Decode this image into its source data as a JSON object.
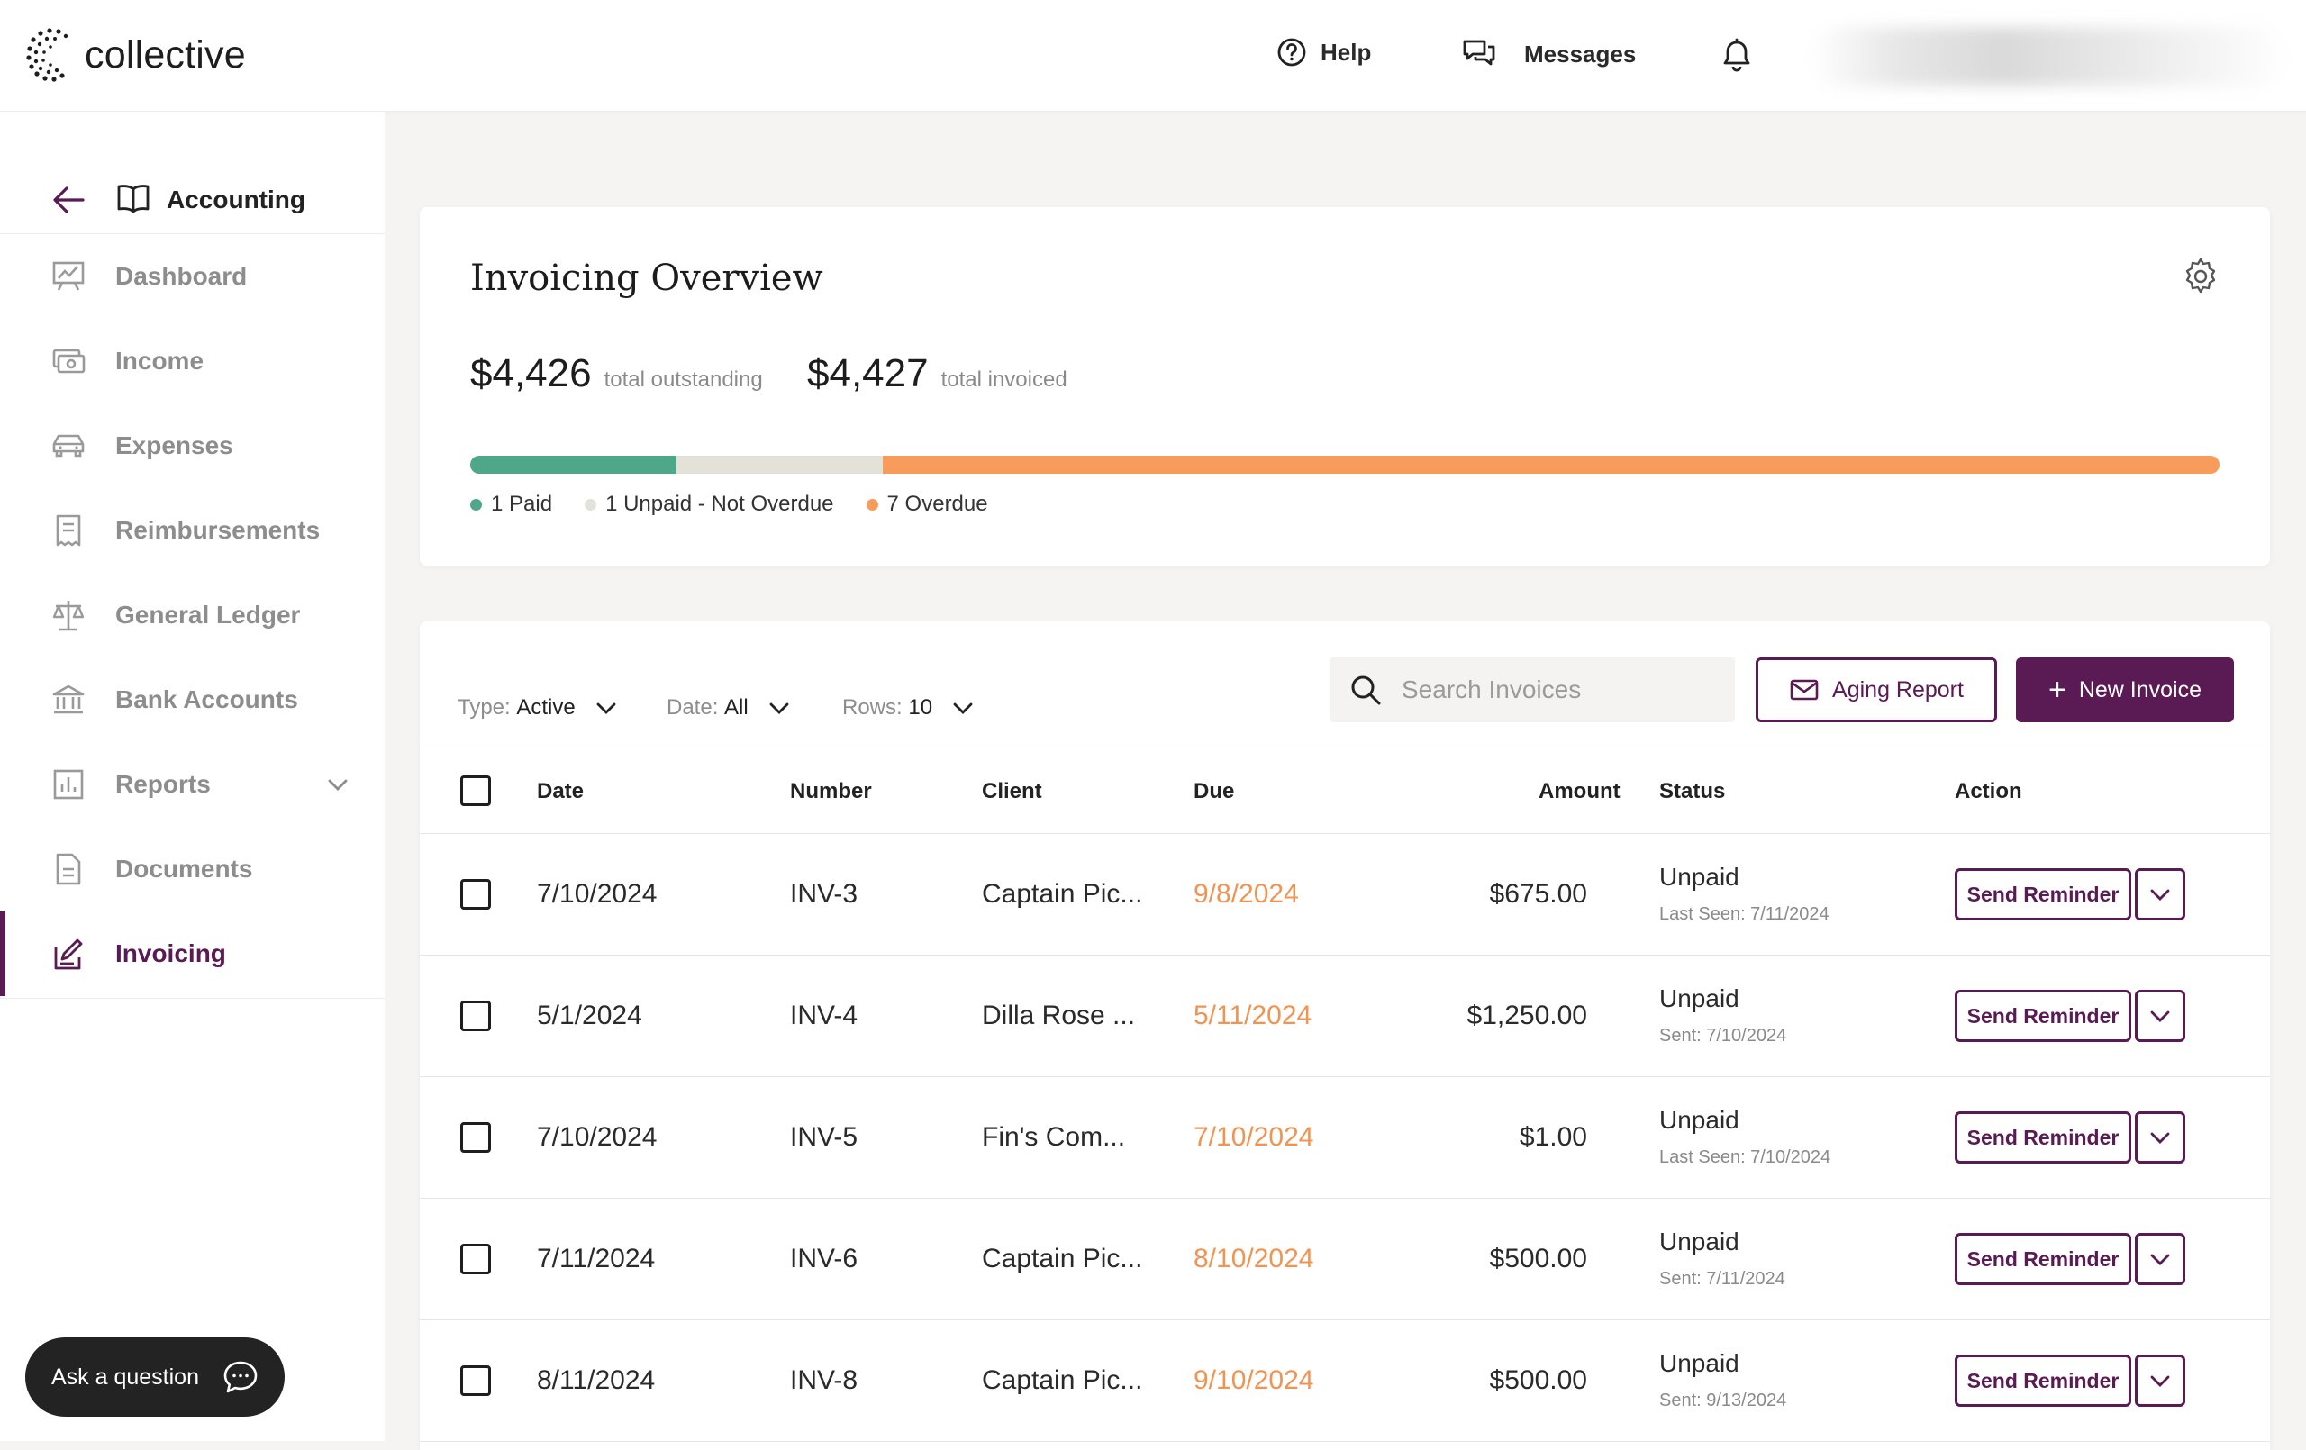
{
  "app": {
    "name": "collective"
  },
  "topnav": {
    "help_label": "Help",
    "messages_label": "Messages"
  },
  "sidebar": {
    "title": "Accounting",
    "items": [
      {
        "label": "Dashboard",
        "icon": "chart-board-icon"
      },
      {
        "label": "Income",
        "icon": "cash-icon"
      },
      {
        "label": "Expenses",
        "icon": "car-icon"
      },
      {
        "label": "Reimbursements",
        "icon": "receipt-icon"
      },
      {
        "label": "General Ledger",
        "icon": "scale-icon"
      },
      {
        "label": "Bank Accounts",
        "icon": "bank-icon"
      },
      {
        "label": "Reports",
        "icon": "bar-chart-icon"
      },
      {
        "label": "Documents",
        "icon": "document-icon"
      },
      {
        "label": "Invoicing",
        "icon": "invoice-edit-icon"
      }
    ],
    "active": "Invoicing",
    "ask_label": "Ask a question"
  },
  "overview": {
    "title": "Invoicing Overview",
    "outstanding_value": "$4,426",
    "outstanding_label": "total outstanding",
    "invoiced_value": "$4,427",
    "invoiced_label": "total invoiced",
    "progress": [
      {
        "label": "1 Paid",
        "fraction": 0.118,
        "color": "#4fa78a"
      },
      {
        "label": "1 Unpaid - Not Overdue",
        "fraction": 0.118,
        "color": "#e3e1d8"
      },
      {
        "label": "7 Overdue",
        "fraction": 0.764,
        "color": "#f79c5a"
      }
    ]
  },
  "filters": {
    "type_key": "Type:",
    "type_value": "Active",
    "date_key": "Date:",
    "date_value": "All",
    "rows_key": "Rows:",
    "rows_value": "10"
  },
  "search": {
    "placeholder": "Search Invoices"
  },
  "buttons": {
    "aging_report": "Aging Report",
    "new_invoice": "New Invoice"
  },
  "table": {
    "columns": {
      "date": "Date",
      "number": "Number",
      "client": "Client",
      "due": "Due",
      "amount": "Amount",
      "status": "Status",
      "action": "Action"
    },
    "rows": [
      {
        "date": "7/10/2024",
        "number": "INV-3",
        "client": "Captain Pic...",
        "due": "9/8/2024",
        "amount": "$675.00",
        "status": "Unpaid",
        "sub": "Last Seen: 7/11/2024",
        "action": "Send Reminder"
      },
      {
        "date": "5/1/2024",
        "number": "INV-4",
        "client": "Dilla Rose ...",
        "due": "5/11/2024",
        "amount": "$1,250.00",
        "status": "Unpaid",
        "sub": "Sent: 7/10/2024",
        "action": "Send Reminder"
      },
      {
        "date": "7/10/2024",
        "number": "INV-5",
        "client": "Fin's Com...",
        "due": "7/10/2024",
        "amount": "$1.00",
        "status": "Unpaid",
        "sub": "Last Seen: 7/10/2024",
        "action": "Send Reminder"
      },
      {
        "date": "7/11/2024",
        "number": "INV-6",
        "client": "Captain Pic...",
        "due": "8/10/2024",
        "amount": "$500.00",
        "status": "Unpaid",
        "sub": "Sent: 7/11/2024",
        "action": "Send Reminder"
      },
      {
        "date": "8/11/2024",
        "number": "INV-8",
        "client": "Captain Pic...",
        "due": "9/10/2024",
        "amount": "$500.00",
        "status": "Unpaid",
        "sub": "Sent: 9/13/2024",
        "action": "Send Reminder"
      }
    ]
  },
  "colors": {
    "brand": "#5a1a53",
    "overdue": "#f19452",
    "paid": "#4fa78a",
    "unpaid": "#e3e1d8"
  }
}
